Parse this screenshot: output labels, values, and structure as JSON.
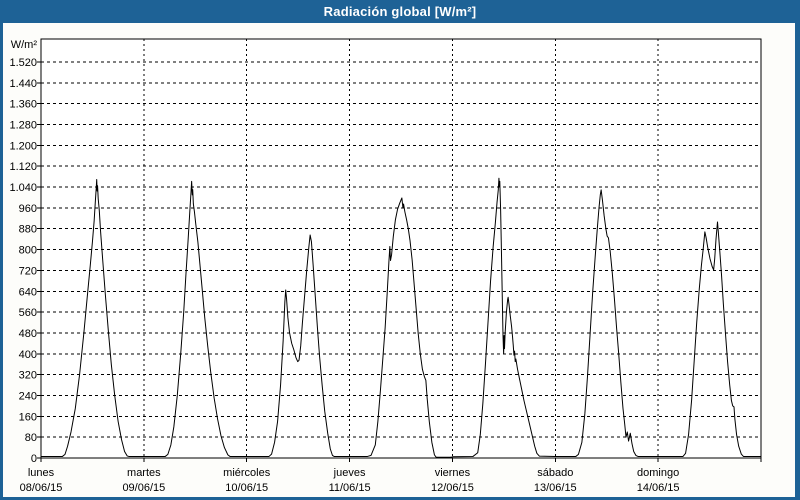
{
  "window": {
    "title": "Radiación global [W/m²]"
  },
  "colors": {
    "titlebar": "#1e6296",
    "frame": "#1e6296",
    "content_bg": "#fdfdfa",
    "plot_bg": "#ffffff",
    "line": "#000000",
    "grid": "#000000",
    "text": "#000000"
  },
  "chart_data": {
    "type": "line",
    "title": "Radiación global [W/m²]",
    "ylabel": "W/m²",
    "grid": "dashed",
    "legend": "none",
    "y_axis": {
      "min": 0,
      "max": 1520,
      "step": 80,
      "tick_labels_bottom_to_top": [
        "0",
        "80",
        "160",
        "240",
        "320",
        "400",
        "480",
        "560",
        "640",
        "720",
        "800",
        "880",
        "960",
        "1.040",
        "1.120",
        "1.200",
        "1.280",
        "1.360",
        "1.440",
        "1.520"
      ]
    },
    "x_axis": {
      "days": [
        {
          "name": "lunes",
          "date": "08/06/15"
        },
        {
          "name": "martes",
          "date": "09/06/15"
        },
        {
          "name": "miércoles",
          "date": "10/06/15"
        },
        {
          "name": "jueves",
          "date": "11/06/15"
        },
        {
          "name": "viernes",
          "date": "12/06/15"
        },
        {
          "name": "sábado",
          "date": "13/06/15"
        },
        {
          "name": "domingo",
          "date": "14/06/15"
        }
      ]
    },
    "series": [
      {
        "name": "Radiación global",
        "unit": "W/m²",
        "days_points_hour_value": [
          [
            [
              0,
              6
            ],
            [
              5,
              6
            ],
            [
              5.6,
              14
            ],
            [
              6.2,
              45
            ],
            [
              7,
              100
            ],
            [
              8,
              190
            ],
            [
              9,
              320
            ],
            [
              10,
              480
            ],
            [
              10.8,
              620
            ],
            [
              11.5,
              740
            ],
            [
              12,
              830
            ],
            [
              12.4,
              910
            ],
            [
              12.7,
              990
            ],
            [
              12.9,
              1040
            ],
            [
              13.0,
              1069
            ],
            [
              13.1,
              1025
            ],
            [
              13.2,
              1045
            ],
            [
              13.35,
              995
            ],
            [
              13.6,
              950
            ],
            [
              13.9,
              870
            ],
            [
              14.4,
              760
            ],
            [
              15,
              630
            ],
            [
              15.7,
              490
            ],
            [
              16.4,
              360
            ],
            [
              17.2,
              240
            ],
            [
              18,
              140
            ],
            [
              18.8,
              70
            ],
            [
              19.5,
              25
            ],
            [
              20.1,
              8
            ],
            [
              20.5,
              6
            ],
            [
              24,
              6
            ]
          ],
          [
            [
              0,
              6
            ],
            [
              5,
              6
            ],
            [
              5.6,
              14
            ],
            [
              6.3,
              50
            ],
            [
              7,
              120
            ],
            [
              7.8,
              240
            ],
            [
              8.6,
              400
            ],
            [
              9.3,
              560
            ],
            [
              9.8,
              700
            ],
            [
              10.3,
              830
            ],
            [
              10.7,
              940
            ],
            [
              11.0,
              1020
            ],
            [
              11.15,
              1062
            ],
            [
              11.3,
              1010
            ],
            [
              11.4,
              1030
            ],
            [
              11.55,
              975
            ],
            [
              11.8,
              945
            ],
            [
              12.1,
              900
            ],
            [
              12.6,
              830
            ],
            [
              13.1,
              740
            ],
            [
              13.6,
              650
            ],
            [
              14.2,
              540
            ],
            [
              14.9,
              430
            ],
            [
              15.6,
              330
            ],
            [
              16.4,
              230
            ],
            [
              17.2,
              150
            ],
            [
              18,
              85
            ],
            [
              18.8,
              40
            ],
            [
              19.6,
              12
            ],
            [
              20.1,
              6
            ],
            [
              24,
              6
            ]
          ],
          [
            [
              0,
              6
            ],
            [
              5.2,
              6
            ],
            [
              5.8,
              15
            ],
            [
              6.5,
              60
            ],
            [
              7.2,
              140
            ],
            [
              7.9,
              280
            ],
            [
              8.5,
              450
            ],
            [
              8.9,
              600
            ],
            [
              9.1,
              645
            ],
            [
              9.3,
              610
            ],
            [
              9.6,
              540
            ],
            [
              10,
              480
            ],
            [
              10.5,
              440
            ],
            [
              11,
              415
            ],
            [
              11.5,
              385
            ],
            [
              11.9,
              370
            ],
            [
              12.2,
              375
            ],
            [
              12.6,
              430
            ],
            [
              13,
              520
            ],
            [
              13.5,
              620
            ],
            [
              14,
              720
            ],
            [
              14.5,
              810
            ],
            [
              14.8,
              856
            ],
            [
              15.1,
              830
            ],
            [
              15.5,
              740
            ],
            [
              16,
              620
            ],
            [
              16.5,
              500
            ],
            [
              17,
              390
            ],
            [
              17.6,
              280
            ],
            [
              18.2,
              180
            ],
            [
              18.9,
              95
            ],
            [
              19.5,
              35
            ],
            [
              20,
              10
            ],
            [
              20.4,
              6
            ],
            [
              24,
              6
            ]
          ],
          [
            [
              0,
              6
            ],
            [
              4.2,
              6
            ],
            [
              5,
              10
            ],
            [
              6,
              50
            ],
            [
              6.6,
              140
            ],
            [
              7.2,
              260
            ],
            [
              7.8,
              390
            ],
            [
              8.3,
              500
            ],
            [
              8.8,
              640
            ],
            [
              9.2,
              760
            ],
            [
              9.4,
              812
            ],
            [
              9.55,
              758
            ],
            [
              9.8,
              780
            ],
            [
              10.2,
              850
            ],
            [
              10.7,
              915
            ],
            [
              11.2,
              955
            ],
            [
              11.7,
              978
            ],
            [
              12.2,
              998
            ],
            [
              12.45,
              960
            ],
            [
              12.6,
              975
            ],
            [
              12.9,
              945
            ],
            [
              13.3,
              915
            ],
            [
              13.7,
              880
            ],
            [
              14.1,
              835
            ],
            [
              14.6,
              760
            ],
            [
              15,
              680
            ],
            [
              15.5,
              580
            ],
            [
              16,
              480
            ],
            [
              16.5,
              400
            ],
            [
              17,
              340
            ],
            [
              17.5,
              310
            ],
            [
              17.8,
              298
            ],
            [
              18.1,
              230
            ],
            [
              18.6,
              140
            ],
            [
              19.2,
              60
            ],
            [
              19.8,
              12
            ],
            [
              20.2,
              3
            ],
            [
              23.5,
              3
            ],
            [
              24,
              4
            ]
          ],
          [
            [
              0,
              5
            ],
            [
              4.8,
              6
            ],
            [
              5.9,
              20
            ],
            [
              6.5,
              90
            ],
            [
              7.1,
              210
            ],
            [
              7.7,
              360
            ],
            [
              8.3,
              520
            ],
            [
              8.9,
              680
            ],
            [
              9.5,
              810
            ],
            [
              10,
              900
            ],
            [
              10.4,
              980
            ],
            [
              10.7,
              1030
            ],
            [
              10.85,
              1074
            ],
            [
              10.95,
              1040
            ],
            [
              11.05,
              1062
            ],
            [
              11.25,
              950
            ],
            [
              11.45,
              780
            ],
            [
              11.65,
              600
            ],
            [
              11.8,
              470
            ],
            [
              11.95,
              400
            ],
            [
              12.05,
              470
            ],
            [
              12.15,
              420
            ],
            [
              12.3,
              480
            ],
            [
              12.6,
              560
            ],
            [
              12.9,
              610
            ],
            [
              13.0,
              617
            ],
            [
              13.2,
              590
            ],
            [
              13.5,
              545
            ],
            [
              13.8,
              505
            ],
            [
              14.0,
              470
            ],
            [
              14.2,
              430
            ],
            [
              14.35,
              395
            ],
            [
              14.5,
              410
            ],
            [
              14.65,
              370
            ],
            [
              14.8,
              380
            ],
            [
              15.2,
              340
            ],
            [
              15.7,
              300
            ],
            [
              16.2,
              260
            ],
            [
              16.7,
              220
            ],
            [
              17.2,
              185
            ],
            [
              17.7,
              150
            ],
            [
              18.2,
              115
            ],
            [
              18.7,
              80
            ],
            [
              19.2,
              45
            ],
            [
              19.7,
              18
            ],
            [
              20.3,
              7
            ],
            [
              24,
              6
            ]
          ],
          [
            [
              0,
              6
            ],
            [
              4.8,
              6
            ],
            [
              5.4,
              14
            ],
            [
              6.2,
              60
            ],
            [
              6.9,
              170
            ],
            [
              7.5,
              310
            ],
            [
              8.1,
              470
            ],
            [
              8.7,
              630
            ],
            [
              9.3,
              770
            ],
            [
              9.8,
              880
            ],
            [
              10.2,
              960
            ],
            [
              10.5,
              1010
            ],
            [
              10.7,
              1029
            ],
            [
              11,
              990
            ],
            [
              11.4,
              930
            ],
            [
              11.8,
              880
            ],
            [
              12.1,
              852
            ],
            [
              12.4,
              845
            ],
            [
              12.8,
              795
            ],
            [
              13.3,
              710
            ],
            [
              13.8,
              610
            ],
            [
              14.3,
              500
            ],
            [
              14.8,
              400
            ],
            [
              15.3,
              290
            ],
            [
              15.8,
              190
            ],
            [
              16.2,
              130
            ],
            [
              16.5,
              80
            ],
            [
              16.8,
              100
            ],
            [
              17.1,
              65
            ],
            [
              17.5,
              95
            ],
            [
              17.9,
              55
            ],
            [
              18.3,
              25
            ],
            [
              18.8,
              10
            ],
            [
              19.3,
              6
            ],
            [
              24,
              6
            ]
          ],
          [
            [
              0,
              6
            ],
            [
              5.8,
              6
            ],
            [
              6.4,
              18
            ],
            [
              7.1,
              90
            ],
            [
              7.8,
              220
            ],
            [
              8.4,
              370
            ],
            [
              9,
              520
            ],
            [
              9.6,
              650
            ],
            [
              10.1,
              740
            ],
            [
              10.5,
              800
            ],
            [
              10.9,
              868
            ],
            [
              11.2,
              845
            ],
            [
              11.6,
              805
            ],
            [
              12.1,
              765
            ],
            [
              12.6,
              735
            ],
            [
              12.95,
              722
            ],
            [
              13.2,
              765
            ],
            [
              13.5,
              840
            ],
            [
              13.85,
              906
            ],
            [
              14.1,
              855
            ],
            [
              14.4,
              790
            ],
            [
              14.8,
              700
            ],
            [
              15.2,
              595
            ],
            [
              15.7,
              480
            ],
            [
              16.2,
              370
            ],
            [
              16.7,
              280
            ],
            [
              17.1,
              220
            ],
            [
              17.4,
              200
            ],
            [
              17.7,
              196
            ],
            [
              17.9,
              150
            ],
            [
              18.3,
              90
            ],
            [
              18.8,
              45
            ],
            [
              19.4,
              15
            ],
            [
              19.9,
              6
            ],
            [
              24,
              6
            ]
          ]
        ]
      }
    ]
  }
}
